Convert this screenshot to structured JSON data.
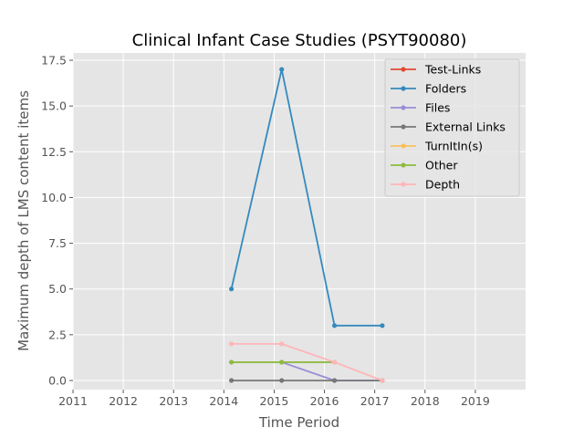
{
  "chart_data": {
    "type": "line",
    "title": "Clinical Infant Case Studies (PSYT90080)",
    "xlabel": "Time Period",
    "ylabel": "Maximum depth of LMS content items",
    "xlim": [
      2011,
      2020
    ],
    "ylim": [
      -0.5,
      17.9
    ],
    "xticks": [
      "2011",
      "2012",
      "2013",
      "2014",
      "2015",
      "2016",
      "2017",
      "2018",
      "2019"
    ],
    "yticks": [
      "0.0",
      "2.5",
      "5.0",
      "7.5",
      "10.0",
      "12.5",
      "15.0",
      "17.5"
    ],
    "grid": true,
    "legend_position": "top-right",
    "series": [
      {
        "name": "Test-Links",
        "color": "#e24a33",
        "x": [
          2017.15
        ],
        "y": [
          0
        ]
      },
      {
        "name": "Folders",
        "color": "#348abd",
        "x": [
          2014.15,
          2015.15,
          2016.2,
          2017.15
        ],
        "y": [
          5,
          17,
          3,
          3
        ]
      },
      {
        "name": "Files",
        "color": "#988ed5",
        "x": [
          2015.15,
          2016.2,
          2017.15
        ],
        "y": [
          1,
          0,
          0
        ]
      },
      {
        "name": "External Links",
        "color": "#777777",
        "x": [
          2014.15,
          2015.15,
          2016.2,
          2017.15
        ],
        "y": [
          0,
          0,
          0,
          0
        ]
      },
      {
        "name": "TurnItIn(s)",
        "color": "#fbc15e",
        "x": [
          2017.15
        ],
        "y": [
          0
        ]
      },
      {
        "name": "Other",
        "color": "#8eba42",
        "x": [
          2014.15,
          2015.15,
          2016.2
        ],
        "y": [
          1,
          1,
          1
        ]
      },
      {
        "name": "Depth",
        "color": "#ffb5b8",
        "x": [
          2014.15,
          2015.15,
          2016.2,
          2017.15
        ],
        "y": [
          2,
          2,
          1,
          0
        ]
      }
    ]
  }
}
